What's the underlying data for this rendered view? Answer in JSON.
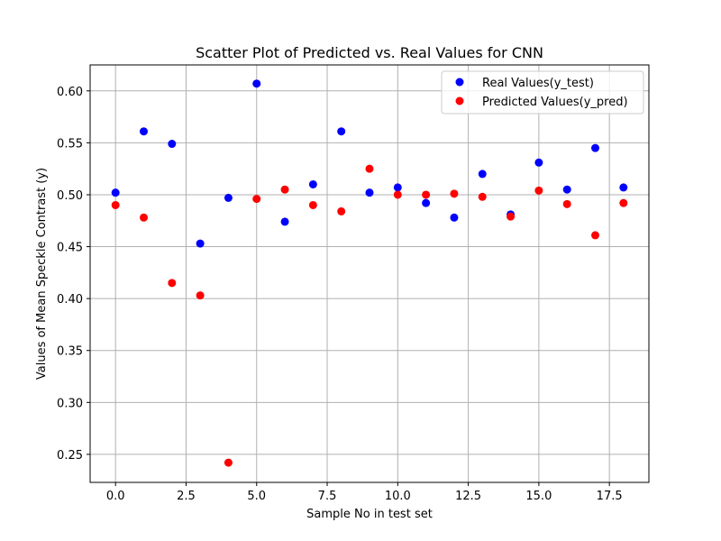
{
  "chart_data": {
    "type": "scatter",
    "title": "Scatter Plot of Predicted vs. Real Values for CNN",
    "xlabel": "Sample No in test set",
    "ylabel": "Values of Mean Speckle Contrast (y)",
    "xlim": [
      -0.9,
      18.9
    ],
    "ylim": [
      0.223,
      0.625
    ],
    "x_ticks": [
      0.0,
      2.5,
      5.0,
      7.5,
      10.0,
      12.5,
      15.0,
      17.5
    ],
    "x_tick_labels": [
      "0.0",
      "2.5",
      "5.0",
      "7.5",
      "10.0",
      "12.5",
      "15.0",
      "17.5"
    ],
    "y_ticks": [
      0.25,
      0.3,
      0.35,
      0.4,
      0.45,
      0.5,
      0.55,
      0.6
    ],
    "y_tick_labels": [
      "0.25",
      "0.30",
      "0.35",
      "0.40",
      "0.45",
      "0.50",
      "0.55",
      "0.60"
    ],
    "grid": true,
    "legend_position": "top-right",
    "series": [
      {
        "name": "Real Values(y_test)",
        "color": "#0000ff",
        "points": [
          [
            0,
            0.502
          ],
          [
            1,
            0.561
          ],
          [
            2,
            0.549
          ],
          [
            3,
            0.453
          ],
          [
            4,
            0.497
          ],
          [
            5,
            0.607
          ],
          [
            6,
            0.474
          ],
          [
            7,
            0.51
          ],
          [
            8,
            0.561
          ],
          [
            9,
            0.502
          ],
          [
            10,
            0.507
          ],
          [
            11,
            0.492
          ],
          [
            12,
            0.478
          ],
          [
            13,
            0.52
          ],
          [
            14,
            0.481
          ],
          [
            15,
            0.531
          ],
          [
            16,
            0.505
          ],
          [
            17,
            0.545
          ],
          [
            18,
            0.507
          ]
        ]
      },
      {
        "name": "Predicted Values(y_pred)",
        "color": "#ff0000",
        "points": [
          [
            0,
            0.49
          ],
          [
            1,
            0.478
          ],
          [
            2,
            0.415
          ],
          [
            3,
            0.403
          ],
          [
            4,
            0.242
          ],
          [
            5,
            0.496
          ],
          [
            6,
            0.505
          ],
          [
            7,
            0.49
          ],
          [
            8,
            0.484
          ],
          [
            9,
            0.525
          ],
          [
            10,
            0.5
          ],
          [
            11,
            0.5
          ],
          [
            12,
            0.501
          ],
          [
            13,
            0.498
          ],
          [
            14,
            0.479
          ],
          [
            15,
            0.504
          ],
          [
            16,
            0.491
          ],
          [
            17,
            0.461
          ],
          [
            18,
            0.492
          ]
        ]
      }
    ]
  }
}
